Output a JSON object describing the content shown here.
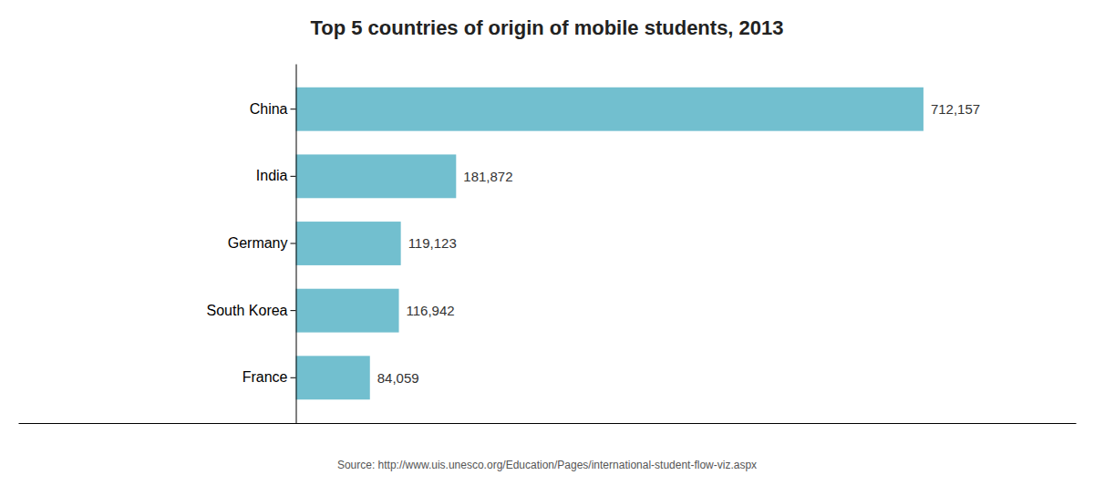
{
  "chart_data": {
    "type": "bar",
    "orientation": "horizontal",
    "title": "Top 5 countries of origin of mobile students, 2013",
    "categories": [
      "China",
      "India",
      "Germany",
      "South Korea",
      "France"
    ],
    "values": [
      712157,
      181872,
      119123,
      116942,
      84059
    ],
    "value_labels": [
      "712,157",
      "181,872",
      "119,123",
      "116,942",
      "84,059"
    ],
    "color": "#72bfcf",
    "xlim": [
      -315000,
      885000
    ],
    "data_labels": true,
    "tick_labels": "y",
    "grid": false,
    "annotations": [
      "Source: http://www.uis.unesco.org/Education/Pages/international-student-flow-viz.aspx"
    ]
  }
}
